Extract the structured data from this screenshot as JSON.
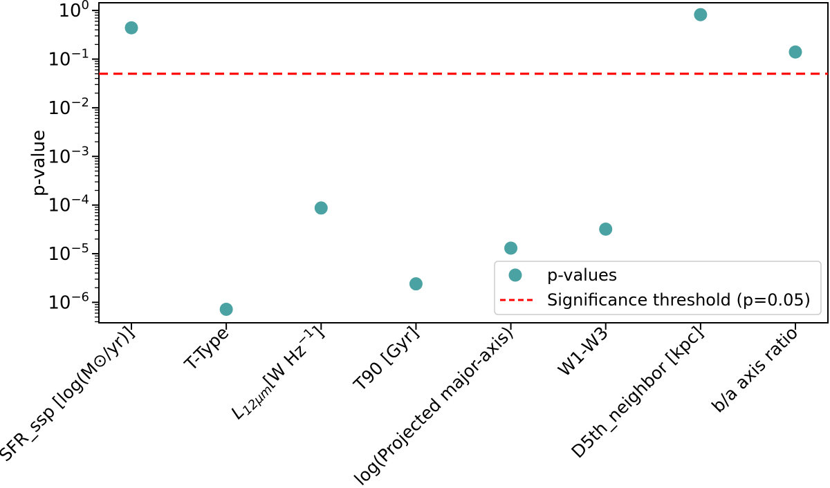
{
  "chart_data": {
    "type": "scatter",
    "title": "",
    "xlabel": "",
    "ylabel": "p-value",
    "yscale": "log",
    "ylim": [
      3.8e-07,
      1.44
    ],
    "grid": false,
    "categories": [
      "SFR_ssp [log(M⊙/yr)]",
      "T-Type",
      "L12μm[W Hz−1]",
      "T90 [Gyr]",
      "log(Projected major-axis)",
      "W1-W3",
      "D5th_neighbor [kpc]",
      "b/a axis ratio"
    ],
    "category_runs": [
      [
        {
          "t": "SFR_ssp [log(M⊙/yr)]"
        }
      ],
      [
        {
          "t": "T-Type"
        }
      ],
      [
        {
          "t": "L",
          "i": true
        },
        {
          "t": "12μm",
          "i": true,
          "sub": true
        },
        {
          "t": "[W Hz"
        },
        {
          "t": "−1",
          "sup": true
        },
        {
          "t": "]"
        }
      ],
      [
        {
          "t": "T90 [Gyr]"
        }
      ],
      [
        {
          "t": "log(Projected major-axis)"
        }
      ],
      [
        {
          "t": "W1-W3"
        }
      ],
      [
        {
          "t": "D5th_neighbor [kpc]"
        }
      ],
      [
        {
          "t": "b/a axis ratio"
        }
      ]
    ],
    "series": [
      {
        "name": "p-values",
        "values": [
          0.44,
          7.2e-07,
          8.7e-05,
          2.4e-06,
          1.3e-05,
          3.2e-05,
          0.82,
          0.14
        ]
      }
    ],
    "threshold": {
      "value": 0.05,
      "label": "Significance threshold (p=0.05)"
    },
    "y_tick_exponents": [
      0,
      -1,
      -2,
      -3,
      -4,
      -5,
      -6
    ],
    "legend": {
      "position": "lower right",
      "entries": [
        {
          "label": "p-values",
          "marker": "circle"
        },
        {
          "label": "Significance threshold (p=0.05)",
          "marker": "dashed-line"
        }
      ]
    },
    "colors": {
      "marker": "#4aa2a2",
      "threshold": "#ff0000",
      "axis": "#000000",
      "legend_border": "#cccccc",
      "background": "#ffffff"
    }
  }
}
